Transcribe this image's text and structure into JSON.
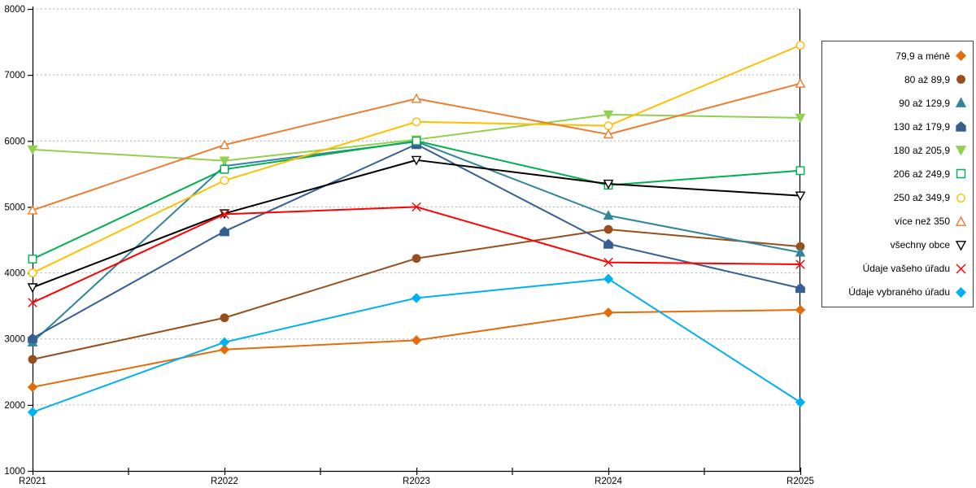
{
  "chart_data": {
    "type": "line",
    "categories": [
      "R2021",
      "R2022",
      "R2023",
      "R2024",
      "R2025"
    ],
    "ylim": [
      1000,
      8000
    ],
    "ytick_step": 1000,
    "y_tick_labels": [
      "1000",
      "2000",
      "3000",
      "4000",
      "5000",
      "6000",
      "7000",
      "8000"
    ],
    "grid": "horizontal-dotted",
    "grid_color": "#b2b2b2",
    "axis_color": "#000000",
    "legend_position": "right-outside-box",
    "series": [
      {
        "name": "79,9 a méně",
        "color": "#e46c0a",
        "marker": "diamond",
        "fill": "solid",
        "values": [
          2270,
          2840,
          2980,
          3400,
          3440
        ]
      },
      {
        "name": "80 až 89,9",
        "color": "#964f1d",
        "marker": "circle",
        "fill": "solid",
        "values": [
          2690,
          3320,
          4220,
          4660,
          4400
        ]
      },
      {
        "name": "90 až 129,9",
        "color": "#31859c",
        "marker": "triangle-up",
        "fill": "solid",
        "values": [
          2950,
          5620,
          5990,
          4870,
          4310
        ]
      },
      {
        "name": "130 až 179,9",
        "color": "#365f91",
        "marker": "pentagon",
        "fill": "solid",
        "values": [
          3010,
          4630,
          5950,
          4440,
          3770
        ]
      },
      {
        "name": "180 až 205,9",
        "color": "#92d050",
        "marker": "triangle-down",
        "fill": "solid",
        "values": [
          5870,
          5700,
          6020,
          6400,
          6350
        ]
      },
      {
        "name": "206 až 249,9",
        "color": "#00b050",
        "marker": "square",
        "fill": "open",
        "values": [
          4210,
          5570,
          6000,
          5330,
          5550
        ]
      },
      {
        "name": "250 až 349,9",
        "color": "#ffc000",
        "marker": "circle",
        "fill": "open",
        "values": [
          4000,
          5400,
          6290,
          6230,
          7450
        ]
      },
      {
        "name": "více než 350",
        "color": "#ed7d31",
        "marker": "triangle-up",
        "fill": "open",
        "values": [
          4950,
          5940,
          6640,
          6100,
          6870
        ]
      },
      {
        "name": "všechny obce",
        "color": "#000000",
        "marker": "triangle-down",
        "fill": "open",
        "values": [
          3780,
          4900,
          5710,
          5350,
          5170
        ]
      },
      {
        "name": "Údaje vašeho úřadu",
        "color": "#ff0000",
        "marker": "x",
        "fill": "line",
        "values": [
          3550,
          4890,
          5000,
          4160,
          4130
        ]
      },
      {
        "name": "Údaje vybraného úřadu",
        "color": "#00b0f0",
        "marker": "diamond",
        "fill": "solid",
        "values": [
          1890,
          2950,
          3620,
          3910,
          2040
        ]
      }
    ]
  }
}
